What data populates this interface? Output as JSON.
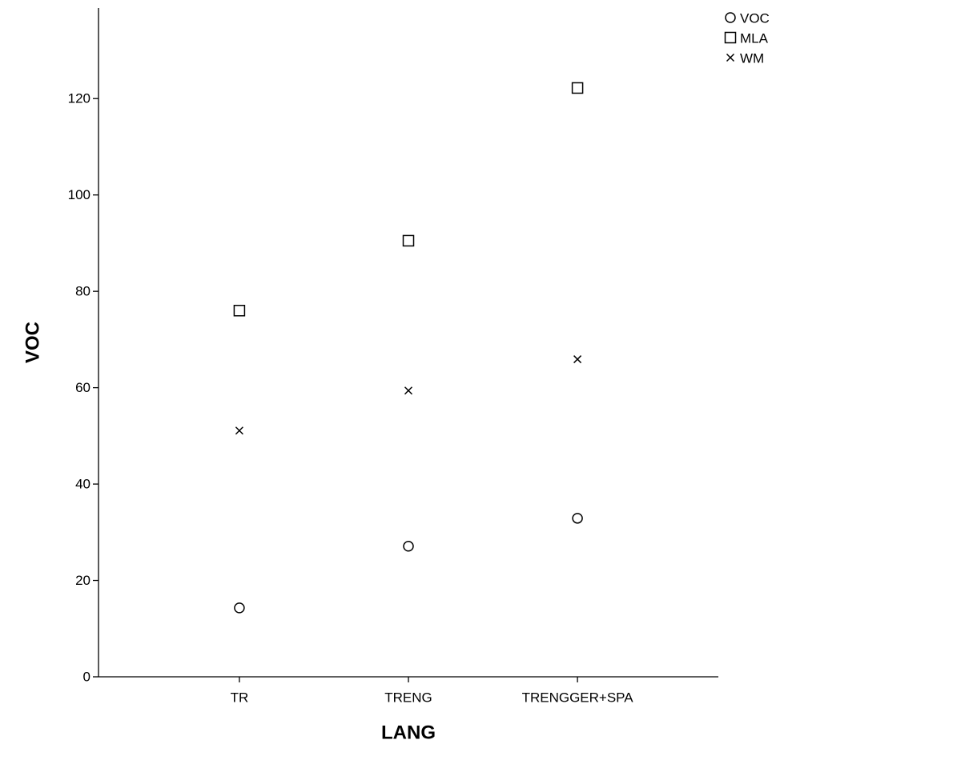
{
  "chart_data": {
    "type": "scatter",
    "x_label": "LANG",
    "y_label": "VOC",
    "categories": [
      "TR",
      "TRENG",
      "TRENGGER+SPA"
    ],
    "series": [
      {
        "name": "VOC",
        "marker": "circle",
        "color": "#000000",
        "values": [
          14.3,
          27.1,
          32.9
        ]
      },
      {
        "name": "MLA",
        "marker": "square",
        "color": "#000000",
        "values": [
          76.0,
          90.5,
          122.2
        ]
      },
      {
        "name": "WM",
        "marker": "x",
        "color": "#000000",
        "values": [
          51.1,
          59.4,
          65.9
        ]
      }
    ],
    "ylim": [
      0,
      138.8
    ],
    "yticks": [
      0,
      20,
      40,
      60,
      80,
      100,
      120
    ],
    "grid": false,
    "legend": "top-right"
  }
}
